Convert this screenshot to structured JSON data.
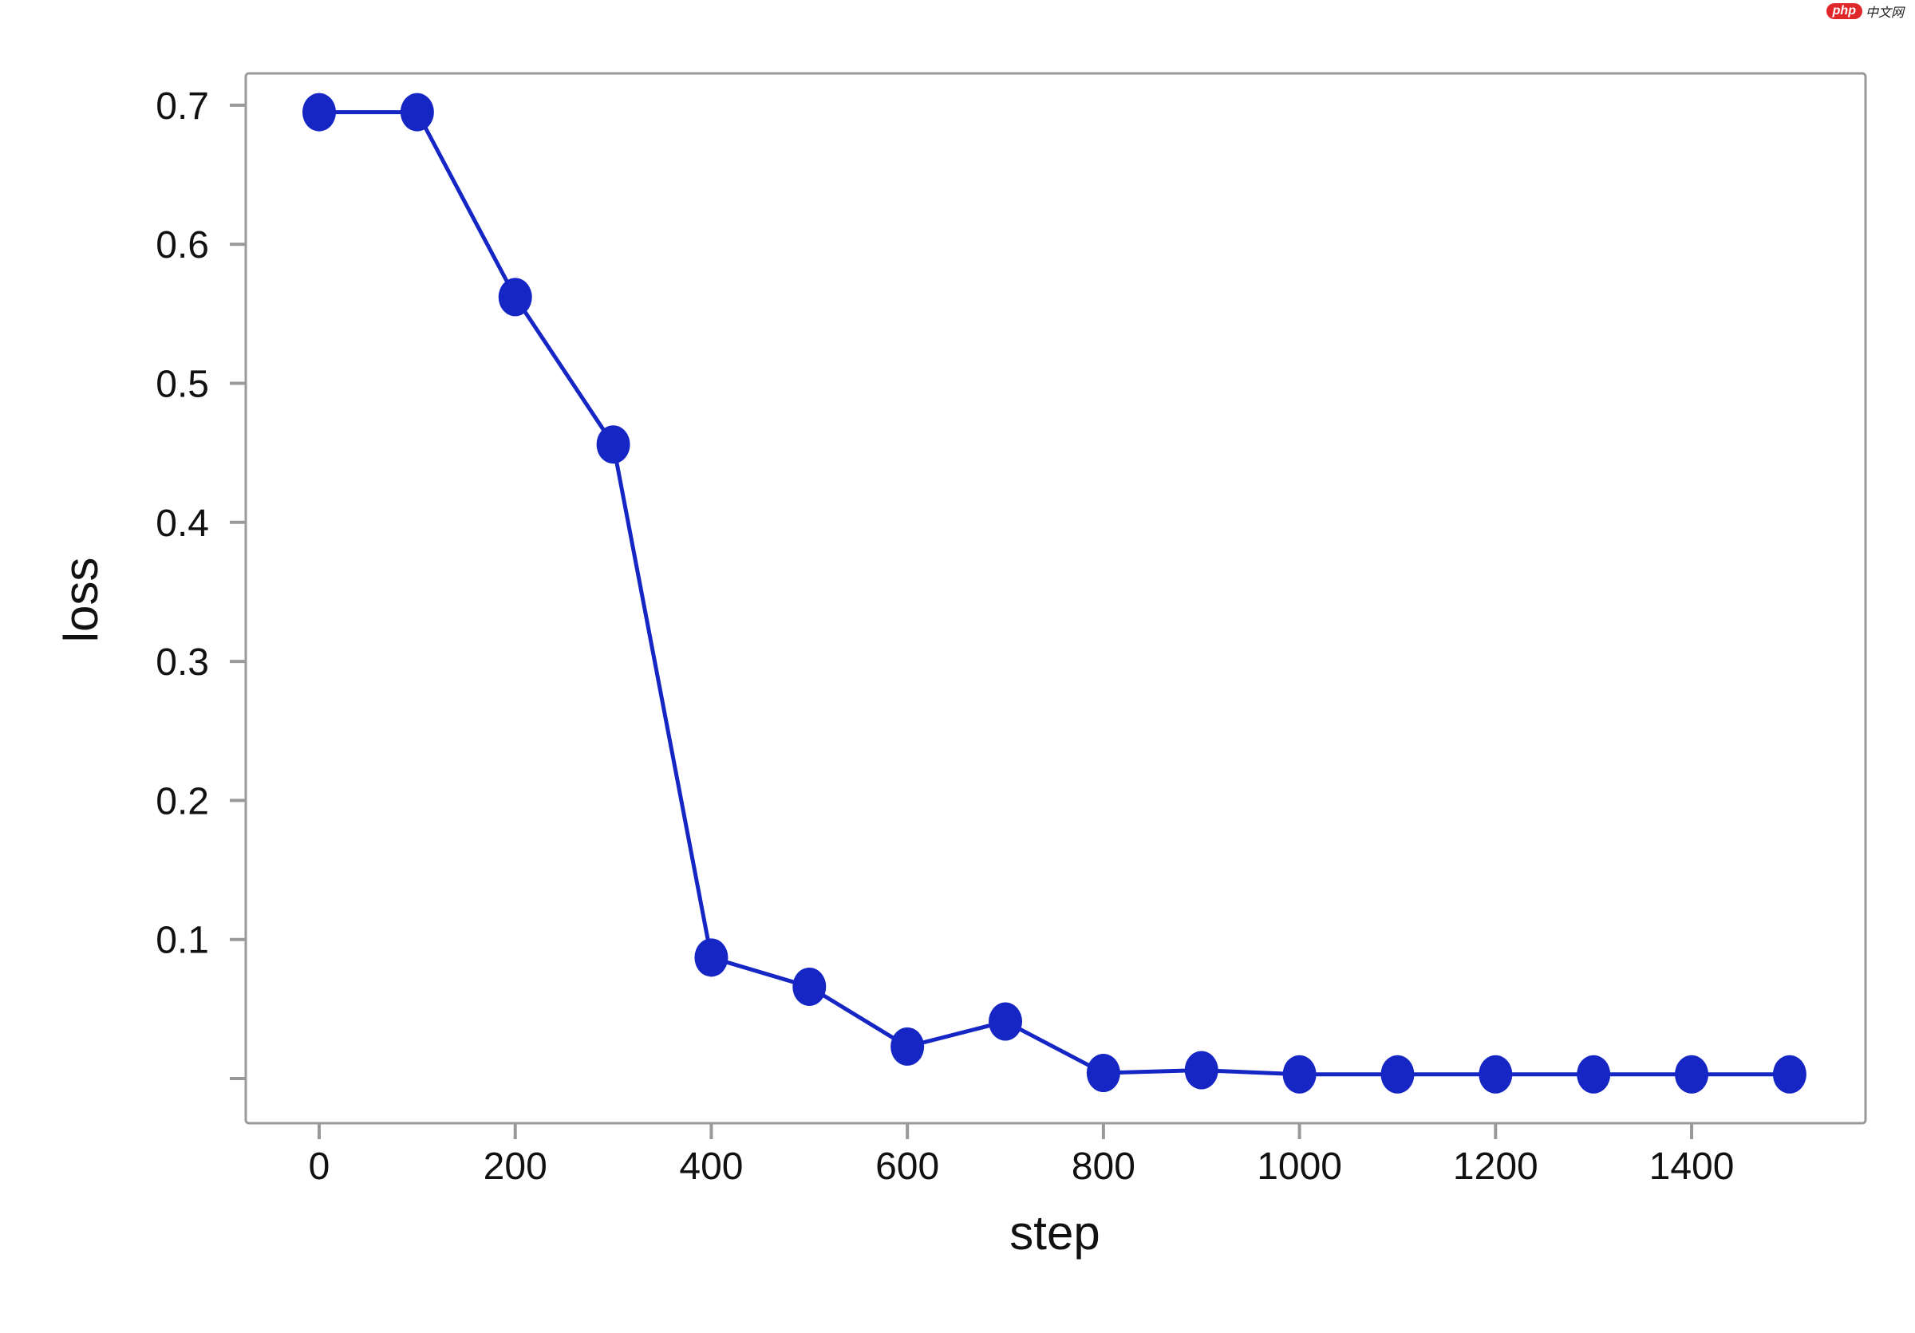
{
  "watermark": {
    "logo": "php",
    "text": "中文网"
  },
  "chart_data": {
    "type": "line",
    "title": "",
    "xlabel": "step",
    "ylabel": "loss",
    "xlim": [
      -70,
      1580
    ],
    "ylim": [
      -0.037,
      0.725
    ],
    "xticks": [
      0,
      200,
      400,
      600,
      800,
      1000,
      1200,
      1400
    ],
    "xtick_labels": [
      "0",
      "200",
      "400",
      "600",
      "800",
      "1000",
      "1200",
      "1400"
    ],
    "yticks": [
      0.0,
      0.1,
      0.2,
      0.3,
      0.4,
      0.5,
      0.6,
      0.7
    ],
    "ytick_labels": [
      "",
      "0.1",
      "0.2",
      "0.3",
      "0.4",
      "0.5",
      "0.6",
      "0.7"
    ],
    "grid": false,
    "color": "#1626c4",
    "series": [
      {
        "x": [
          0,
          100,
          200,
          300,
          400,
          500,
          600,
          700,
          800,
          900,
          1000,
          1100,
          1200,
          1300,
          1400,
          1500
        ],
        "y": [
          0.695,
          0.695,
          0.562,
          0.456,
          0.087,
          0.066,
          0.023,
          0.041,
          0.004,
          0.006,
          0.003,
          0.003,
          0.003,
          0.003,
          0.003,
          0.003
        ]
      }
    ]
  }
}
